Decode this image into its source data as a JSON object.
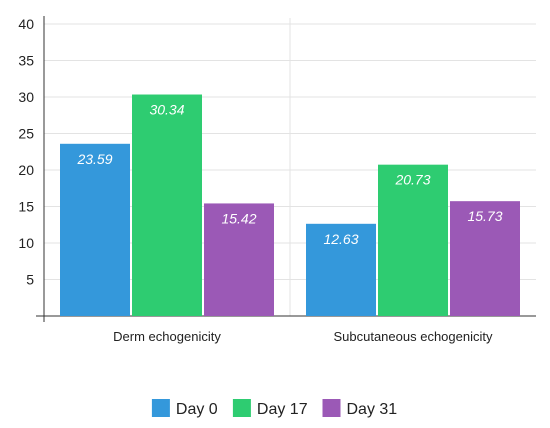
{
  "chart_data": {
    "type": "bar",
    "categories": [
      "Derm echogenicity",
      "Subcutaneous echogenicity"
    ],
    "series": [
      {
        "name": "Day 0",
        "values": [
          23.59,
          12.63
        ],
        "color": "#3498db"
      },
      {
        "name": "Day 17",
        "values": [
          30.34,
          20.73
        ],
        "color": "#2ecc71"
      },
      {
        "name": "Day 31",
        "values": [
          15.42,
          15.73
        ],
        "color": "#9b59b6"
      }
    ],
    "ylim": [
      0,
      40
    ],
    "yticks": [
      5,
      10,
      15,
      20,
      25,
      30,
      35,
      40
    ],
    "data_labels": true,
    "grid": true,
    "legend": "bottom-center"
  }
}
